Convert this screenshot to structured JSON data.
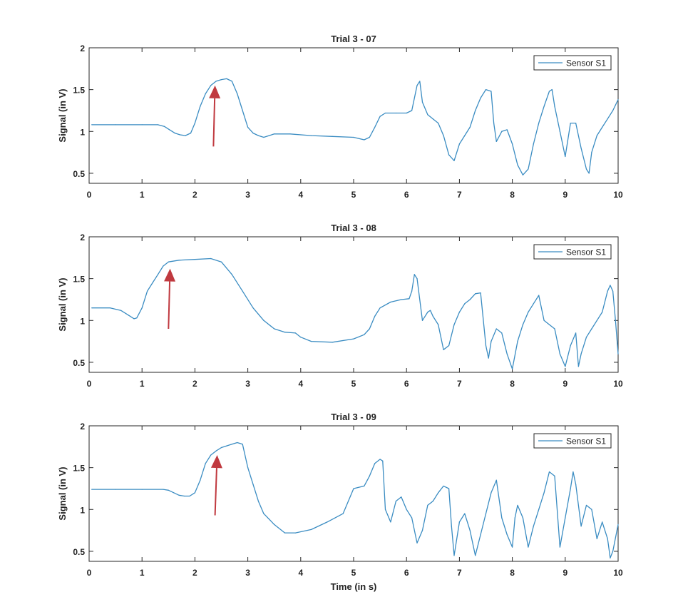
{
  "colors": {
    "series": "#3a8cc2",
    "arrow": "#c0393f",
    "axis": "#262626"
  },
  "chart_data": [
    {
      "type": "line",
      "title": "Trial 3 - 07",
      "xlabel": "",
      "ylabel": "Signal (in V)",
      "xlim": [
        0,
        10
      ],
      "ylim": [
        0.38,
        2.0
      ],
      "xticks": [
        "0",
        "1",
        "2",
        "3",
        "4",
        "5",
        "6",
        "7",
        "8",
        "9",
        "10"
      ],
      "yticks": [
        "0.5",
        "1",
        "1.5",
        "2"
      ],
      "legend": "Sensor S1",
      "annotation": {
        "type": "arrow",
        "from": [
          2.35,
          0.82
        ],
        "to": [
          2.38,
          1.55
        ]
      },
      "series": [
        {
          "name": "Sensor S1",
          "x": [
            0.05,
            0.5,
            1,
            1.3,
            1.42,
            1.52,
            1.62,
            1.72,
            1.82,
            1.92,
            2.0,
            2.1,
            2.2,
            2.3,
            2.4,
            2.5,
            2.6,
            2.7,
            2.8,
            2.9,
            3.0,
            3.1,
            3.2,
            3.3,
            3.5,
            3.8,
            4.2,
            4.6,
            5.0,
            5.2,
            5.3,
            5.4,
            5.5,
            5.6,
            5.8,
            6.0,
            6.1,
            6.2,
            6.25,
            6.3,
            6.4,
            6.5,
            6.6,
            6.7,
            6.8,
            6.9,
            7.0,
            7.1,
            7.2,
            7.3,
            7.4,
            7.5,
            7.6,
            7.65,
            7.7,
            7.8,
            7.9,
            8.0,
            8.1,
            8.2,
            8.3,
            8.35,
            8.4,
            8.5,
            8.6,
            8.7,
            8.75,
            8.8,
            8.9,
            9.0,
            9.1,
            9.2,
            9.3,
            9.4,
            9.45,
            9.5,
            9.6,
            9.7,
            9.8,
            9.9,
            10.0
          ],
          "y": [
            1.08,
            1.08,
            1.08,
            1.08,
            1.06,
            1.02,
            0.98,
            0.96,
            0.95,
            0.98,
            1.1,
            1.3,
            1.45,
            1.55,
            1.6,
            1.62,
            1.63,
            1.6,
            1.45,
            1.25,
            1.05,
            0.98,
            0.95,
            0.93,
            0.97,
            0.97,
            0.95,
            0.94,
            0.93,
            0.9,
            0.93,
            1.05,
            1.18,
            1.22,
            1.22,
            1.22,
            1.25,
            1.55,
            1.6,
            1.35,
            1.2,
            1.15,
            1.1,
            0.95,
            0.72,
            0.65,
            0.85,
            0.95,
            1.05,
            1.25,
            1.4,
            1.5,
            1.48,
            1.1,
            0.88,
            1.0,
            1.02,
            0.85,
            0.6,
            0.48,
            0.55,
            0.7,
            0.85,
            1.1,
            1.3,
            1.48,
            1.5,
            1.3,
            1.0,
            0.7,
            1.1,
            1.1,
            0.8,
            0.55,
            0.5,
            0.75,
            0.95,
            1.05,
            1.15,
            1.25,
            1.38
          ]
        }
      ]
    },
    {
      "type": "line",
      "title": "Trial 3 - 08",
      "xlabel": "",
      "ylabel": "Signal (in V)",
      "xlim": [
        0,
        10
      ],
      "ylim": [
        0.38,
        2.0
      ],
      "xticks": [
        "0",
        "1",
        "2",
        "3",
        "4",
        "5",
        "6",
        "7",
        "8",
        "9",
        "10"
      ],
      "yticks": [
        "0.5",
        "1",
        "1.5",
        "2"
      ],
      "legend": "Sensor S1",
      "annotation": {
        "type": "arrow",
        "from": [
          1.5,
          0.9
        ],
        "to": [
          1.53,
          1.62
        ]
      },
      "series": [
        {
          "name": "Sensor S1",
          "x": [
            0.05,
            0.4,
            0.6,
            0.75,
            0.85,
            0.9,
            1.0,
            1.1,
            1.2,
            1.3,
            1.4,
            1.5,
            1.7,
            2.0,
            2.3,
            2.5,
            2.7,
            2.9,
            3.1,
            3.3,
            3.5,
            3.7,
            3.9,
            4.0,
            4.2,
            4.6,
            5.0,
            5.2,
            5.3,
            5.4,
            5.5,
            5.7,
            5.9,
            6.05,
            6.1,
            6.15,
            6.2,
            6.3,
            6.4,
            6.45,
            6.5,
            6.6,
            6.7,
            6.8,
            6.9,
            7.0,
            7.1,
            7.2,
            7.3,
            7.4,
            7.5,
            7.55,
            7.6,
            7.7,
            7.8,
            7.9,
            8.0,
            8.1,
            8.2,
            8.3,
            8.4,
            8.5,
            8.6,
            8.7,
            8.8,
            8.9,
            9.0,
            9.1,
            9.2,
            9.25,
            9.3,
            9.4,
            9.5,
            9.6,
            9.7,
            9.8,
            9.85,
            9.9,
            9.95,
            10.0
          ],
          "y": [
            1.15,
            1.15,
            1.12,
            1.06,
            1.02,
            1.03,
            1.15,
            1.35,
            1.45,
            1.55,
            1.65,
            1.7,
            1.72,
            1.73,
            1.74,
            1.7,
            1.55,
            1.35,
            1.15,
            1.0,
            0.9,
            0.86,
            0.85,
            0.8,
            0.75,
            0.74,
            0.78,
            0.83,
            0.9,
            1.05,
            1.15,
            1.22,
            1.25,
            1.26,
            1.35,
            1.55,
            1.5,
            1.0,
            1.1,
            1.12,
            1.05,
            0.95,
            0.65,
            0.7,
            0.95,
            1.1,
            1.2,
            1.25,
            1.32,
            1.33,
            0.7,
            0.55,
            0.75,
            0.9,
            0.85,
            0.6,
            0.42,
            0.75,
            0.95,
            1.1,
            1.2,
            1.3,
            1.0,
            0.95,
            0.9,
            0.6,
            0.45,
            0.7,
            0.85,
            0.45,
            0.6,
            0.8,
            0.9,
            1.0,
            1.1,
            1.35,
            1.42,
            1.35,
            1.0,
            0.6
          ]
        }
      ]
    },
    {
      "type": "line",
      "title": "Trial 3 - 09",
      "xlabel": "Time (in s)",
      "ylabel": "Signal (in V)",
      "xlim": [
        0,
        10
      ],
      "ylim": [
        0.38,
        2.0
      ],
      "xticks": [
        "0",
        "1",
        "2",
        "3",
        "4",
        "5",
        "6",
        "7",
        "8",
        "9",
        "10"
      ],
      "yticks": [
        "0.5",
        "1",
        "1.5",
        "2"
      ],
      "legend": "Sensor S1",
      "annotation": {
        "type": "arrow",
        "from": [
          2.38,
          0.93
        ],
        "to": [
          2.42,
          1.65
        ]
      },
      "series": [
        {
          "name": "Sensor S1",
          "x": [
            0.05,
            0.5,
            1,
            1.4,
            1.5,
            1.6,
            1.7,
            1.8,
            1.9,
            2.0,
            2.1,
            2.2,
            2.3,
            2.4,
            2.5,
            2.6,
            2.7,
            2.8,
            2.9,
            3.0,
            3.1,
            3.2,
            3.3,
            3.5,
            3.7,
            3.9,
            4.2,
            4.5,
            4.8,
            5.0,
            5.2,
            5.3,
            5.4,
            5.5,
            5.55,
            5.6,
            5.7,
            5.8,
            5.9,
            6.0,
            6.1,
            6.2,
            6.3,
            6.4,
            6.5,
            6.6,
            6.7,
            6.8,
            6.85,
            6.9,
            7.0,
            7.1,
            7.2,
            7.3,
            7.4,
            7.5,
            7.6,
            7.7,
            7.8,
            7.9,
            8.0,
            8.05,
            8.1,
            8.2,
            8.3,
            8.4,
            8.5,
            8.6,
            8.7,
            8.8,
            8.9,
            9.0,
            9.1,
            9.15,
            9.2,
            9.3,
            9.4,
            9.5,
            9.6,
            9.7,
            9.8,
            9.85,
            9.9,
            10.0
          ],
          "y": [
            1.24,
            1.24,
            1.24,
            1.24,
            1.23,
            1.2,
            1.17,
            1.16,
            1.16,
            1.2,
            1.35,
            1.55,
            1.65,
            1.7,
            1.74,
            1.76,
            1.78,
            1.8,
            1.78,
            1.5,
            1.3,
            1.1,
            0.95,
            0.82,
            0.72,
            0.72,
            0.76,
            0.85,
            0.95,
            1.25,
            1.28,
            1.4,
            1.55,
            1.6,
            1.58,
            1.0,
            0.85,
            1.1,
            1.15,
            1.0,
            0.9,
            0.6,
            0.75,
            1.05,
            1.1,
            1.2,
            1.28,
            1.25,
            0.8,
            0.45,
            0.85,
            0.95,
            0.75,
            0.45,
            0.7,
            0.95,
            1.2,
            1.35,
            0.9,
            0.7,
            0.55,
            0.9,
            1.05,
            0.9,
            0.55,
            0.8,
            1.0,
            1.2,
            1.45,
            1.4,
            0.55,
            0.9,
            1.25,
            1.45,
            1.3,
            0.8,
            1.05,
            1.0,
            0.65,
            0.85,
            0.65,
            0.42,
            0.5,
            0.82
          ]
        }
      ]
    }
  ]
}
